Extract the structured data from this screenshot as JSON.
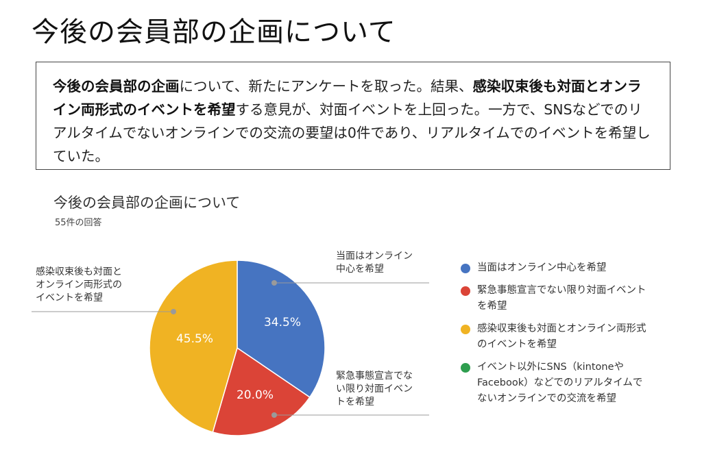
{
  "page": {
    "title": "今後の会員部の企画について"
  },
  "summary": {
    "b1": "今後の会員部の企画",
    "t1": "について、新たにアンケートを取った。結果、",
    "b2": "感染収束後も対面とオンライン両形式のイベントを希望",
    "t2": "する意見が、対面イベントを上回った。一方で、SNSなどでのリアルタイムでないオンラインでの交流の要望は0件であり、リアルタイムでのイベントを希望していた。"
  },
  "chart_data": {
    "type": "pie",
    "title": "今後の会員部の企画について",
    "subtitle": "55件の回答",
    "slices": [
      {
        "label": "当面はオンライン中心を希望",
        "value": 34.5,
        "value_label": "34.5%",
        "color": "#4674c1",
        "callout": [
          "当面はオンライン",
          "中心を希望"
        ]
      },
      {
        "label": "緊急事態宣言でない限り対面イベントを希望",
        "value": 20.0,
        "value_label": "20.0%",
        "color": "#db4437",
        "callout": [
          "緊急事態宣言でな",
          "い限り対面イベン",
          "トを希望"
        ]
      },
      {
        "label": "感染収束後も対面とオンライン両形式のイベントを希望",
        "value": 45.5,
        "value_label": "45.5%",
        "color": "#f0b323",
        "callout": [
          "感染収束後も対面と",
          "オンライン両形式の",
          "イベントを希望"
        ]
      },
      {
        "label": "イベント以外にSNS（kintoneやFacebook）などでのリアルタイムでないオンラインでの交流を希望",
        "value": 0,
        "value_label": "",
        "color": "#2e9e4f",
        "callout": []
      }
    ],
    "legend": [
      {
        "lines": [
          "当面はオンライン中心を希望"
        ],
        "color": "#4674c1"
      },
      {
        "lines": [
          "緊急事態宣言でない限り対面イベント",
          "を希望"
        ],
        "color": "#db4437"
      },
      {
        "lines": [
          "感染収束後も対面とオンライン両形式",
          "のイベントを希望"
        ],
        "color": "#f0b323"
      },
      {
        "lines": [
          "イベント以外にSNS（kintoneや",
          "Facebook）などでのリアルタイムで",
          "ないオンラインでの交流を希望"
        ],
        "color": "#2e9e4f"
      }
    ],
    "legend_placement": "right"
  }
}
